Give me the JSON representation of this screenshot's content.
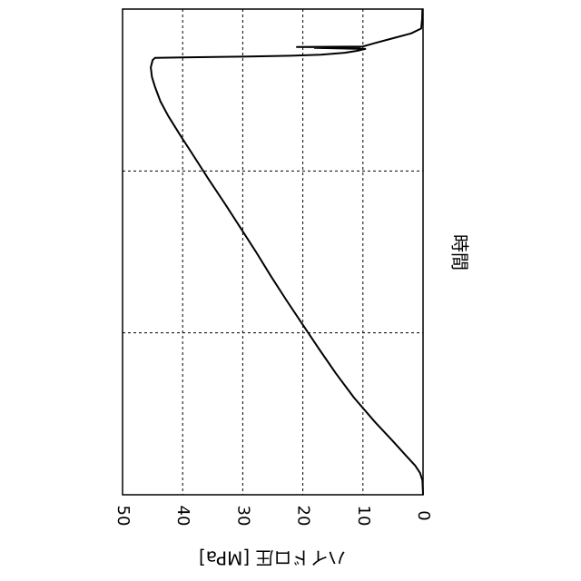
{
  "chart_data": {
    "type": "line",
    "orientation": "rotated-90",
    "xlabel": "時間",
    "ylabel": "ハイドロ圧 [MPa]",
    "ylim": [
      0,
      50
    ],
    "xlim": [
      0,
      1
    ],
    "yticks": [
      "0",
      "10",
      "20",
      "30",
      "40",
      "50"
    ],
    "grid": true,
    "grid_style": "dashed",
    "line_color": "#000000",
    "series": [
      {
        "values": [
          [
            0.0,
            0.0
          ],
          [
            0.03,
            0.1
          ],
          [
            0.045,
            0.5
          ],
          [
            0.06,
            1.3
          ],
          [
            0.08,
            2.8
          ],
          [
            0.11,
            5.0
          ],
          [
            0.15,
            8.0
          ],
          [
            0.2,
            11.5
          ],
          [
            0.25,
            14.5
          ],
          [
            0.3,
            17.3
          ],
          [
            0.35,
            20.0
          ],
          [
            0.4,
            22.7
          ],
          [
            0.45,
            25.3
          ],
          [
            0.5,
            27.8
          ],
          [
            0.55,
            30.4
          ],
          [
            0.6,
            33.0
          ],
          [
            0.65,
            35.7
          ],
          [
            0.7,
            38.3
          ],
          [
            0.74,
            40.4
          ],
          [
            0.78,
            42.4
          ],
          [
            0.81,
            43.7
          ],
          [
            0.84,
            44.6
          ],
          [
            0.86,
            45.1
          ],
          [
            0.88,
            45.3
          ],
          [
            0.895,
            45.0
          ],
          [
            0.8995,
            44.6
          ],
          [
            0.9005,
            40.0
          ],
          [
            0.902,
            30.0
          ],
          [
            0.904,
            22.0
          ],
          [
            0.906,
            17.0
          ],
          [
            0.91,
            13.0
          ],
          [
            0.914,
            11.0
          ],
          [
            0.918,
            9.6
          ],
          [
            0.92,
            18.0
          ],
          [
            0.921,
            10.5
          ],
          [
            0.922,
            21.0
          ],
          [
            0.923,
            10.0
          ],
          [
            0.93,
            8.0
          ],
          [
            0.94,
            5.0
          ],
          [
            0.95,
            2.0
          ],
          [
            0.96,
            0.3
          ],
          [
            0.98,
            0.15
          ],
          [
            1.0,
            0.1
          ]
        ]
      }
    ]
  }
}
